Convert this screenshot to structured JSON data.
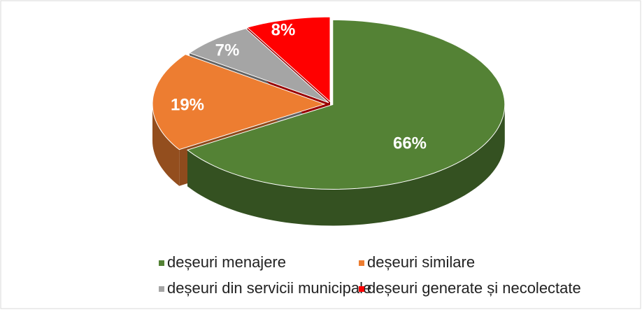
{
  "chart_data": {
    "type": "pie",
    "categories": [
      "deșeuri menajere",
      "deșeuri similare",
      "deșeuri din servicii municipale",
      "deșeuri generate și necolectate"
    ],
    "values": [
      66,
      19,
      7,
      8
    ],
    "value_labels": [
      "66%",
      "19%",
      "7%",
      "8%"
    ],
    "colors": [
      "#548235",
      "#ed7d31",
      "#a5a5a5",
      "#ff0000"
    ]
  }
}
